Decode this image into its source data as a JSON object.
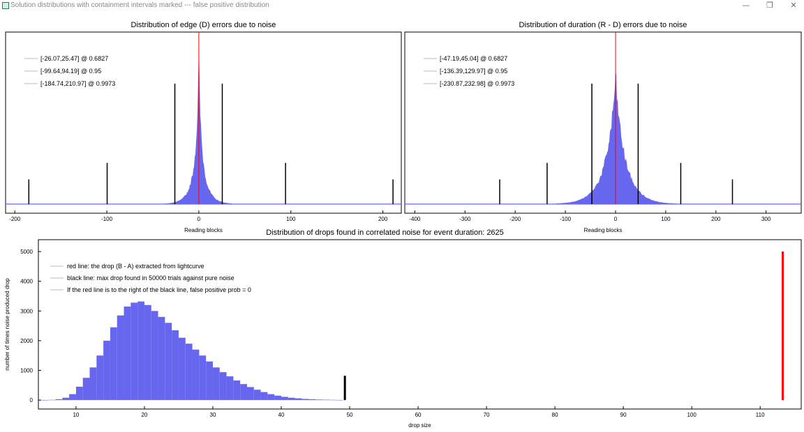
{
  "window": {
    "title": "Solution distributions with containment intervals marked --- false positive distribution",
    "minimize_glyph": "—",
    "maximize_glyph": "❐",
    "close_glyph": "✕"
  },
  "colors": {
    "hist": "#6666ee",
    "red": "#ff0000",
    "black": "#000000",
    "axis": "#000000"
  },
  "chart_data": [
    {
      "type": "bar",
      "title": "Distribution of edge (D) errors due to noise",
      "xlabel": "Reading blocks",
      "ylabel": "",
      "xlim": [
        -210,
        220
      ],
      "ylim": [
        0,
        1
      ],
      "xticks": [
        -200,
        -100,
        0,
        100,
        200
      ],
      "histogram": {
        "shape": "laplace",
        "center": 0,
        "scale": 8,
        "sharpness": 1.4,
        "peak": 1.0
      },
      "red_line": {
        "x": 0
      },
      "intervals": [
        {
          "label": "[-26.07,25.47] @ 0.6827",
          "low": -26.07,
          "high": 25.47,
          "height": 0.73
        },
        {
          "label": "[-99.64,94.19] @ 0.95",
          "low": -99.64,
          "high": 94.19,
          "height": 0.25
        },
        {
          "label": "[-184.74,210.97] @ 0.9973",
          "low": -184.74,
          "high": 210.97,
          "height": 0.15
        }
      ]
    },
    {
      "type": "bar",
      "title": "Distribution of duration (R - D) errors due to noise",
      "xlabel": "Reading blocks",
      "ylabel": "",
      "xlim": [
        -420,
        370
      ],
      "ylim": [
        0,
        1
      ],
      "xticks": [
        -400,
        -300,
        -200,
        -100,
        0,
        100,
        200,
        300
      ],
      "histogram": {
        "shape": "laplace",
        "center": 0,
        "scale": 38,
        "sharpness": 1.1,
        "peak": 0.78
      },
      "red_line": {
        "x": 0
      },
      "intervals": [
        {
          "label": "[-47.19,45.04] @ 0.6827",
          "low": -47.19,
          "high": 45.04,
          "height": 0.73
        },
        {
          "label": "[-136.39,129.97] @ 0.95",
          "low": -136.39,
          "high": 129.97,
          "height": 0.25
        },
        {
          "label": "[-230.87,232.98] @ 0.9973",
          "low": -230.87,
          "high": 232.98,
          "height": 0.15
        }
      ]
    },
    {
      "type": "bar",
      "title": "Distribution of drops found in correlated noise for event duration: 2625",
      "xlabel": "drop size",
      "ylabel": "number of times noise produced drop",
      "xlim": [
        4.5,
        116
      ],
      "ylim": [
        -300,
        5400
      ],
      "xticks": [
        10,
        20,
        30,
        40,
        50,
        60,
        70,
        80,
        90,
        100,
        110
      ],
      "yticks": [
        0,
        1000,
        2000,
        3000,
        4000,
        5000
      ],
      "legend": [
        "red line: the drop (B - A) extracted from lightcurve",
        "black line: max drop found in 50000 trials against pure noise",
        "If the red line is to the right of the black line, false positive prob = 0"
      ],
      "bin_width": 1,
      "bins_x": [
        5,
        6,
        7,
        8,
        9,
        10,
        11,
        12,
        13,
        14,
        15,
        16,
        17,
        18,
        19,
        20,
        21,
        22,
        23,
        24,
        25,
        26,
        27,
        28,
        29,
        30,
        31,
        32,
        33,
        34,
        35,
        36,
        37,
        38,
        39,
        40,
        41,
        42,
        43,
        44,
        45,
        46,
        47,
        48
      ],
      "bins_y": [
        5,
        10,
        30,
        80,
        200,
        450,
        750,
        1100,
        1500,
        2000,
        2450,
        2850,
        3150,
        3280,
        3320,
        3200,
        3000,
        2800,
        2600,
        2350,
        2100,
        1900,
        1700,
        1500,
        1300,
        1100,
        940,
        800,
        660,
        540,
        440,
        350,
        270,
        200,
        150,
        110,
        80,
        60,
        40,
        30,
        20,
        15,
        10,
        5
      ],
      "black_line": {
        "x": 49.3,
        "y_max": 820
      },
      "red_line": {
        "x": 113.3,
        "y_max": 5000
      }
    }
  ]
}
